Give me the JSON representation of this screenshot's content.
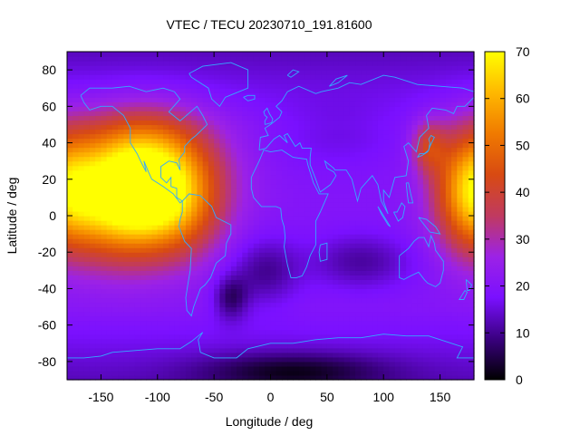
{
  "chart_data": {
    "type": "heatmap",
    "title": "VTEC / TECU 20230710_191.81600",
    "xlabel": "Longitude / deg",
    "ylabel": "Latitude / deg",
    "xlim": [
      -180,
      180
    ],
    "ylim": [
      -90,
      90
    ],
    "xticks": [
      -150,
      -100,
      -50,
      0,
      50,
      100,
      150
    ],
    "yticks": [
      80,
      60,
      40,
      20,
      0,
      -20,
      -40,
      -60,
      -80
    ],
    "colorbar": {
      "range": [
        0,
        70
      ],
      "ticks": [
        0,
        10,
        20,
        30,
        40,
        50,
        60,
        70
      ],
      "palette": [
        "#000000",
        "#3a0080",
        "#7a10ff",
        "#9c22e6",
        "#c03a60",
        "#d84a12",
        "#f07a00",
        "#ffb800",
        "#ffff00"
      ]
    },
    "grid": false,
    "overlay": "coastlines",
    "overlay_color": "#33aaff",
    "blobs": [
      {
        "lon": -115,
        "lat": 15,
        "w": 60,
        "h": 32,
        "amp": 58
      },
      {
        "lon": -80,
        "lat": 5,
        "w": 35,
        "h": 28,
        "amp": 10
      },
      {
        "lon": -140,
        "lat": 0,
        "w": 45,
        "h": 30,
        "amp": 12
      },
      {
        "lon": -110,
        "lat": 40,
        "w": 55,
        "h": 22,
        "amp": 10
      },
      {
        "lon": 175,
        "lat": 15,
        "w": 30,
        "h": 32,
        "amp": 30
      },
      {
        "lon": 140,
        "lat": 38,
        "w": 15,
        "h": 14,
        "amp": 18
      },
      {
        "lon": -35,
        "lat": -45,
        "w": 15,
        "h": 12,
        "amp": -12
      },
      {
        "lon": -5,
        "lat": -30,
        "w": 30,
        "h": 18,
        "amp": -10
      },
      {
        "lon": 80,
        "lat": -25,
        "w": 45,
        "h": 15,
        "amp": -9
      },
      {
        "lon": 20,
        "lat": -85,
        "w": 80,
        "h": 10,
        "amp": -12
      },
      {
        "lon": 60,
        "lat": 45,
        "w": 60,
        "h": 20,
        "amp": -4
      }
    ],
    "base_value": 20
  }
}
